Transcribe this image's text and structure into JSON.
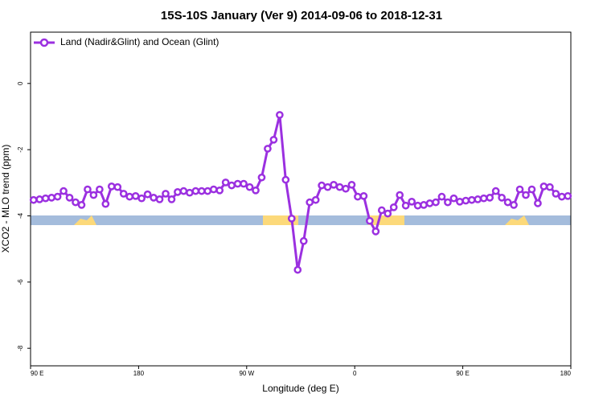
{
  "chart_data": {
    "type": "line",
    "title": "15S-10S January (Ver 9)   2014-09-06 to 2018-12-31",
    "x_label": "Longitude (deg E)",
    "y_label": "XCO2 - MLO trend (ppm)",
    "x": [
      92.5,
      97.5,
      102.5,
      107.5,
      112.5,
      117.5,
      122.5,
      127.5,
      132.5,
      137.5,
      142.5,
      147.5,
      152.5,
      157.5,
      162.5,
      167.5,
      172.5,
      177.5,
      182.5,
      187.5,
      192.5,
      197.5,
      202.5,
      207.5,
      212.5,
      217.5,
      222.5,
      227.5,
      232.5,
      237.5,
      242.5,
      247.5,
      252.5,
      257.5,
      262.5,
      267.5,
      272.5,
      277.5,
      282.5,
      287.5,
      292.5,
      297.5,
      302.5,
      307.5,
      312.5,
      317.5,
      322.5,
      327.5,
      332.5,
      337.5,
      342.5,
      347.5,
      352.5,
      357.5,
      362.5,
      367.5,
      372.5,
      377.5,
      382.5,
      387.5,
      392.5,
      397.5,
      402.5,
      407.5,
      412.5,
      417.5,
      422.5,
      427.5,
      432.5,
      437.5,
      442.5,
      447.5,
      452.5,
      457.5,
      462.5,
      467.5,
      472.5,
      477.5,
      482.5,
      487.5,
      492.5,
      497.5,
      502.5,
      507.5,
      512.5,
      517.5,
      522.5,
      527.5,
      532.5,
      537.5
    ],
    "series": [
      {
        "name": "Land (Nadir&Glint) and Ocean (Glint)",
        "color": "#9b30e0",
        "values": [
          -3.52,
          -3.5,
          -3.47,
          -3.45,
          -3.42,
          -3.25,
          -3.45,
          -3.59,
          -3.67,
          -3.2,
          -3.37,
          -3.2,
          -3.64,
          -3.11,
          -3.13,
          -3.33,
          -3.42,
          -3.4,
          -3.47,
          -3.35,
          -3.45,
          -3.5,
          -3.33,
          -3.5,
          -3.28,
          -3.25,
          -3.3,
          -3.25,
          -3.25,
          -3.25,
          -3.2,
          -3.23,
          -2.99,
          -3.08,
          -3.03,
          -3.03,
          -3.13,
          -3.23,
          -2.84,
          -1.97,
          -1.7,
          -0.95,
          -2.91,
          -4.08,
          -5.63,
          -4.76,
          -3.59,
          -3.52,
          -3.08,
          -3.13,
          -3.06,
          -3.13,
          -3.18,
          -3.06,
          -3.42,
          -3.4,
          -4.15,
          -4.47,
          -3.83,
          -3.93,
          -3.74,
          -3.37,
          -3.69,
          -3.57,
          -3.69,
          -3.67,
          -3.62,
          -3.59,
          -3.42,
          -3.59,
          -3.47,
          -3.57,
          -3.54,
          -3.52,
          -3.5,
          -3.47,
          -3.45,
          -3.25,
          -3.45,
          -3.59,
          -3.67,
          -3.2,
          -3.37,
          -3.2,
          -3.62,
          -3.11,
          -3.13,
          -3.33,
          -3.42,
          -3.4
        ]
      }
    ],
    "xlim": [
      90,
      540
    ],
    "xticks": [
      {
        "value": 90,
        "label": "90 E"
      },
      {
        "value": 180,
        "label": "180"
      },
      {
        "value": 270,
        "label": "90 W"
      },
      {
        "value": 360,
        "label": "0"
      },
      {
        "value": 450,
        "label": "90 E"
      },
      {
        "value": 540,
        "label": "180"
      }
    ],
    "ylim": [
      -8.53,
      1.55
    ],
    "yticks": [
      -8,
      -6,
      -4,
      -2,
      0
    ],
    "legend": "top-left"
  }
}
